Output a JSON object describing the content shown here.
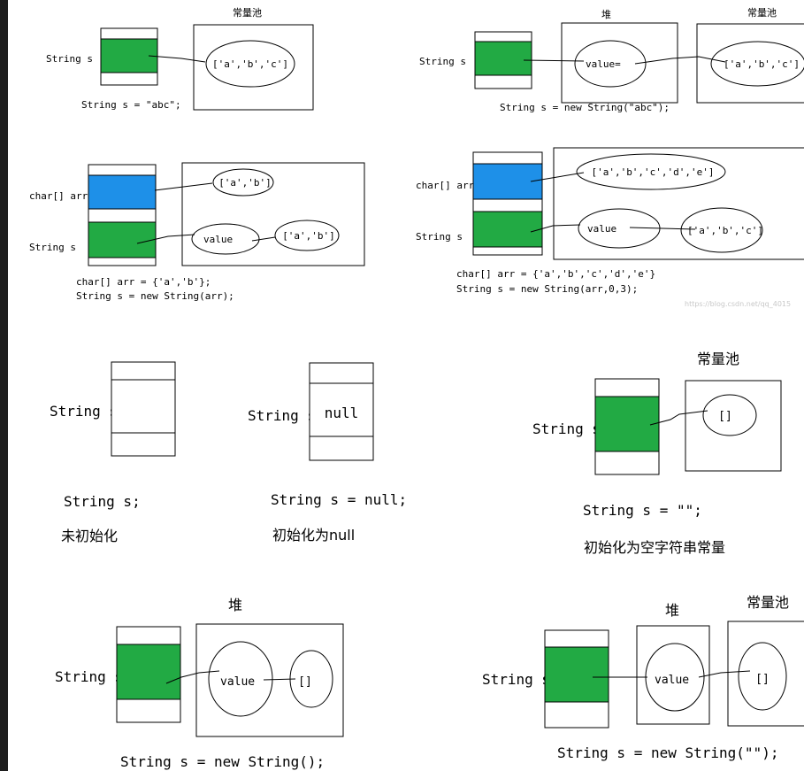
{
  "colors": {
    "green": "#22aa44",
    "blue": "#1e90e8",
    "line": "#000000",
    "background": "#ffffff"
  },
  "watermark": "https://blog.csdn.net/qq_4015",
  "panel1": {
    "var_label": "String s",
    "pool_title": "常量池",
    "array_text": "['a','b','c']",
    "code": "String s = \"abc\";"
  },
  "panel2": {
    "var_label": "String s",
    "heap_title": "堆",
    "pool_title": "常量池",
    "value_text": "value=",
    "array_text": "['a','b','c']",
    "code": "String s = new String(\"abc\");"
  },
  "panel3": {
    "arr_label": "char[] arr",
    "var_label": "String s",
    "arr_text": "['a','b']",
    "value_text": "value",
    "copy_text": "['a','b']",
    "code_line1": "char[] arr = {'a','b'};",
    "code_line2": "String s = new String(arr);"
  },
  "panel4": {
    "arr_label": "char[] arr",
    "var_label": "String s",
    "arr_text": "['a','b','c','d','e']",
    "value_text": "value",
    "copy_text": "['a','b','c']",
    "code_line1": "char[] arr = {'a','b','c','d','e'}",
    "code_line2": "String s = new String(arr,0,3);"
  },
  "panel5": {
    "var_label": "String s",
    "code": "String s;",
    "caption": "未初始化"
  },
  "panel6": {
    "var_label": "String s",
    "cell_text": "null",
    "code": "String s = null;",
    "caption": "初始化为null"
  },
  "panel7": {
    "var_label": "String s",
    "pool_title": "常量池",
    "array_text": "[]",
    "code": "String s = \"\";",
    "caption": "初始化为空字符串常量"
  },
  "panel8": {
    "var_label": "String s",
    "heap_title": "堆",
    "value_text": "value",
    "array_text": "[]",
    "code": "String s = new String();"
  },
  "panel9": {
    "var_label": "String s",
    "heap_title": "堆",
    "pool_title": "常量池",
    "value_text": "value",
    "array_text": "[]",
    "code": "String s = new String(\"\");"
  }
}
